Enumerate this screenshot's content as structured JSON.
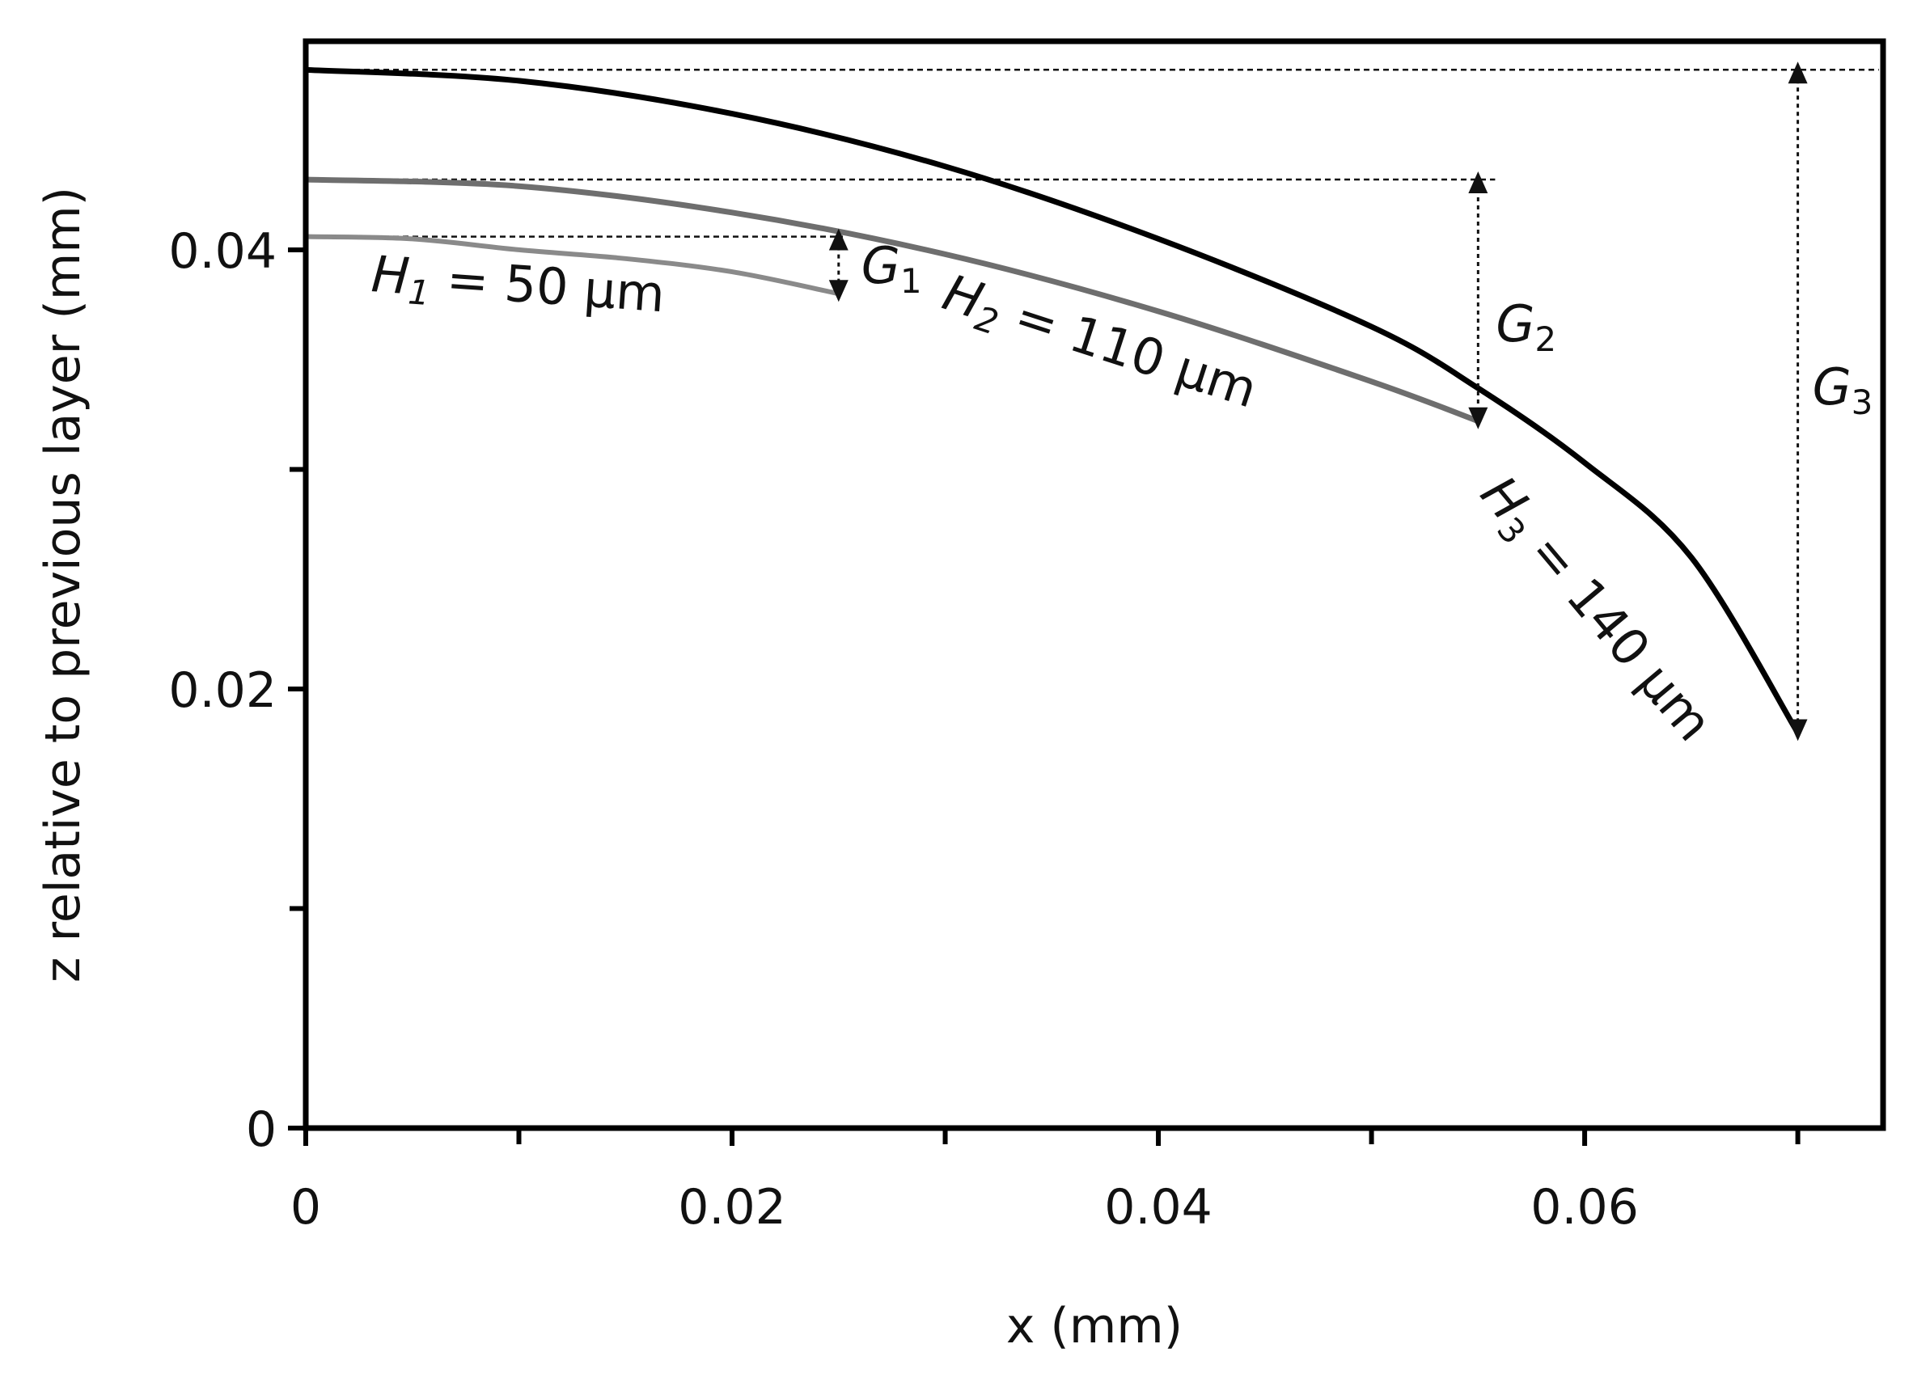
{
  "chart_data": {
    "type": "line",
    "xlabel": "x (mm)",
    "ylabel": "z relative to previous layer (mm)",
    "xlim": [
      0,
      0.074
    ],
    "ylim": [
      0,
      0.0495
    ],
    "x_ticks_major": [
      0,
      0.02,
      0.04,
      0.06
    ],
    "x_tick_labels": [
      "0",
      "0.02",
      "0.04",
      "0.06"
    ],
    "x_ticks_minor": [
      0.01,
      0.03,
      0.05,
      0.07
    ],
    "y_ticks_major": [
      0,
      0.02,
      0.04
    ],
    "y_tick_labels": [
      "0",
      "0.02",
      "0.04"
    ],
    "y_ticks_minor": [
      0.01,
      0.03
    ],
    "grid": false,
    "series": [
      {
        "label": "H1 = 50 µm",
        "label_parts": {
          "symbol": "H",
          "sub": "1",
          "rest": " = 50 µm"
        },
        "color": "#8a8a8a",
        "x": [
          0,
          0.005,
          0.01,
          0.015,
          0.02,
          0.025
        ],
        "y": [
          0.0406,
          0.0405,
          0.04,
          0.0396,
          0.039,
          0.038
        ]
      },
      {
        "label": "H2 = 110 µm",
        "label_parts": {
          "symbol": "H",
          "sub": "2",
          "rest": " = 110 µm"
        },
        "color": "#6e6e6e",
        "x": [
          0,
          0.01,
          0.02,
          0.03,
          0.04,
          0.05,
          0.055
        ],
        "y": [
          0.0432,
          0.0429,
          0.0417,
          0.0398,
          0.0372,
          0.034,
          0.0322
        ]
      },
      {
        "label": "H3 = 140 µm",
        "label_parts": {
          "symbol": "H",
          "sub": "3",
          "rest": " = 140 µm"
        },
        "color": "#000000",
        "x": [
          0,
          0.01,
          0.02,
          0.03,
          0.04,
          0.05,
          0.055,
          0.06,
          0.065,
          0.07
        ],
        "y": [
          0.0482,
          0.0477,
          0.0462,
          0.0438,
          0.0405,
          0.0365,
          0.0337,
          0.0303,
          0.026,
          0.018
        ]
      }
    ],
    "annotations": [
      {
        "label": "G1",
        "symbol": "G",
        "sub": "1",
        "x": 0.025,
        "y_top": 0.0406,
        "y_bottom": 0.038
      },
      {
        "label": "G2",
        "symbol": "G",
        "sub": "2",
        "x": 0.055,
        "y_top": 0.0432,
        "y_bottom": 0.0322
      },
      {
        "label": "G3",
        "symbol": "G",
        "sub": "3",
        "x": 0.07,
        "y_top": 0.0482,
        "y_bottom": 0.018
      }
    ]
  }
}
